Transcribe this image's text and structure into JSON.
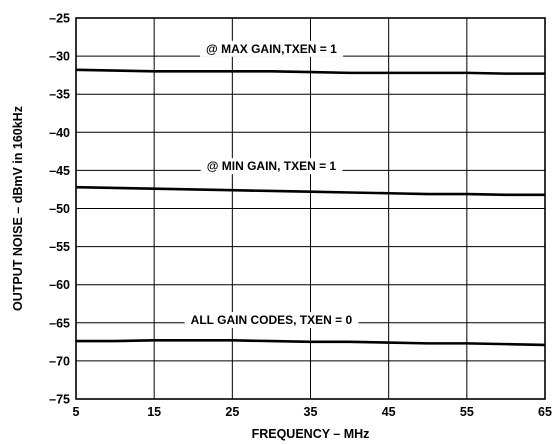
{
  "chart_data": {
    "type": "line",
    "xlabel": "FREQUENCY – MHz",
    "ylabel": "OUTPUT NOISE – dBmV in 160kHz",
    "xlim": [
      5,
      65
    ],
    "ylim": [
      -75,
      -25
    ],
    "x_ticks": [
      "5",
      "15",
      "25",
      "35",
      "45",
      "55",
      "65"
    ],
    "y_ticks": [
      "–25",
      "–30",
      "–35",
      "–40",
      "–45",
      "–50",
      "–55",
      "–60",
      "–65",
      "–70",
      "–75"
    ],
    "grid": true,
    "series": [
      {
        "label": "@ MAX GAIN,TXEN = 1",
        "x": [
          5,
          10,
          15,
          20,
          25,
          30,
          35,
          40,
          45,
          50,
          55,
          60,
          65
        ],
        "y": [
          -31.8,
          -31.9,
          -32.0,
          -32.0,
          -32.0,
          -32.0,
          -32.1,
          -32.2,
          -32.2,
          -32.2,
          -32.2,
          -32.3,
          -32.3
        ]
      },
      {
        "label": "@ MIN GAIN, TXEN = 1",
        "x": [
          5,
          10,
          15,
          20,
          25,
          30,
          35,
          40,
          45,
          50,
          55,
          60,
          65
        ],
        "y": [
          -47.2,
          -47.3,
          -47.4,
          -47.5,
          -47.6,
          -47.7,
          -47.8,
          -47.9,
          -48.0,
          -48.1,
          -48.1,
          -48.2,
          -48.2
        ]
      },
      {
        "label": "ALL GAIN CODES, TXEN = 0",
        "x": [
          5,
          10,
          15,
          20,
          25,
          30,
          35,
          40,
          45,
          50,
          55,
          60,
          65
        ],
        "y": [
          -67.4,
          -67.4,
          -67.3,
          -67.3,
          -67.3,
          -67.4,
          -67.5,
          -67.5,
          -67.6,
          -67.7,
          -67.7,
          -67.8,
          -67.9
        ]
      }
    ]
  }
}
